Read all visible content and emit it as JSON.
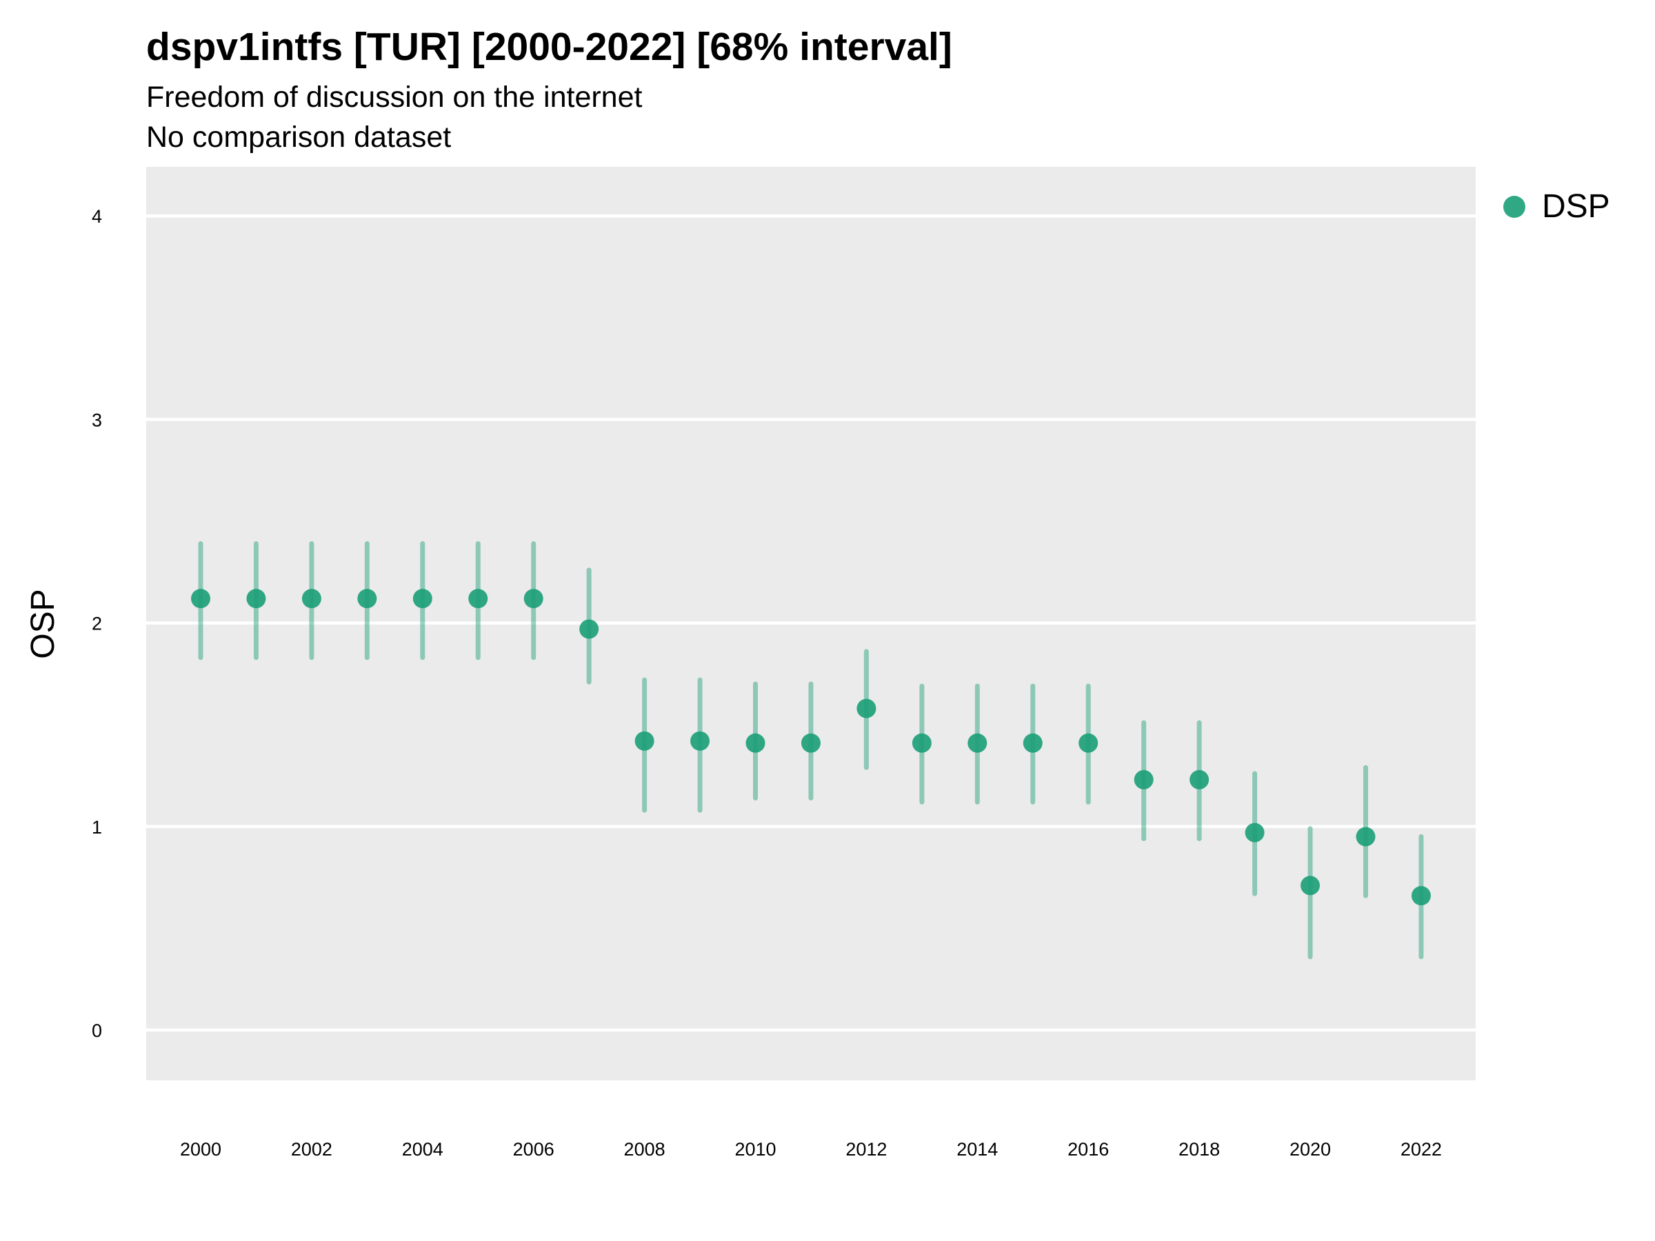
{
  "title": "dspv1intfs [TUR] [2000-2022] [68% interval]",
  "subtitle": "Freedom of discussion on the internet",
  "caption": "No comparison dataset",
  "legend": {
    "label": "DSP",
    "color": "#1b9e77"
  },
  "chart_data": {
    "type": "scatter",
    "title": "dspv1intfs [TUR] [2000-2022] [68% interval]",
    "subtitle": "Freedom of discussion on the internet",
    "xlabel": "",
    "ylabel": "OSP",
    "xlim": [
      1999,
      2023
    ],
    "ylim": [
      -0.25,
      4.25
    ],
    "x_ticks": [
      2000,
      2002,
      2004,
      2006,
      2008,
      2010,
      2012,
      2014,
      2016,
      2018,
      2020,
      2022
    ],
    "y_ticks": [
      0,
      1,
      2,
      3,
      4
    ],
    "grid": true,
    "legend_position": "right",
    "panel_background": "#ebebeb",
    "series": [
      {
        "name": "DSP",
        "color": "#1b9e77",
        "points": [
          {
            "x": 2000,
            "y": 2.12,
            "low": 1.83,
            "high": 2.39
          },
          {
            "x": 2001,
            "y": 2.12,
            "low": 1.83,
            "high": 2.39
          },
          {
            "x": 2002,
            "y": 2.12,
            "low": 1.83,
            "high": 2.39
          },
          {
            "x": 2003,
            "y": 2.12,
            "low": 1.83,
            "high": 2.39
          },
          {
            "x": 2004,
            "y": 2.12,
            "low": 1.83,
            "high": 2.39
          },
          {
            "x": 2005,
            "y": 2.12,
            "low": 1.83,
            "high": 2.39
          },
          {
            "x": 2006,
            "y": 2.12,
            "low": 1.83,
            "high": 2.39
          },
          {
            "x": 2007,
            "y": 1.97,
            "low": 1.71,
            "high": 2.26
          },
          {
            "x": 2008,
            "y": 1.42,
            "low": 1.08,
            "high": 1.72
          },
          {
            "x": 2009,
            "y": 1.42,
            "low": 1.08,
            "high": 1.72
          },
          {
            "x": 2010,
            "y": 1.41,
            "low": 1.14,
            "high": 1.7
          },
          {
            "x": 2011,
            "y": 1.41,
            "low": 1.14,
            "high": 1.7
          },
          {
            "x": 2012,
            "y": 1.58,
            "low": 1.29,
            "high": 1.86
          },
          {
            "x": 2013,
            "y": 1.41,
            "low": 1.12,
            "high": 1.69
          },
          {
            "x": 2014,
            "y": 1.41,
            "low": 1.12,
            "high": 1.69
          },
          {
            "x": 2015,
            "y": 1.41,
            "low": 1.12,
            "high": 1.69
          },
          {
            "x": 2016,
            "y": 1.41,
            "low": 1.12,
            "high": 1.69
          },
          {
            "x": 2017,
            "y": 1.23,
            "low": 0.94,
            "high": 1.51
          },
          {
            "x": 2018,
            "y": 1.23,
            "low": 0.94,
            "high": 1.51
          },
          {
            "x": 2019,
            "y": 0.97,
            "low": 0.67,
            "high": 1.26
          },
          {
            "x": 2020,
            "y": 0.71,
            "low": 0.36,
            "high": 0.99
          },
          {
            "x": 2021,
            "y": 0.95,
            "low": 0.66,
            "high": 1.29
          },
          {
            "x": 2022,
            "y": 0.66,
            "low": 0.36,
            "high": 0.95
          }
        ]
      }
    ]
  }
}
